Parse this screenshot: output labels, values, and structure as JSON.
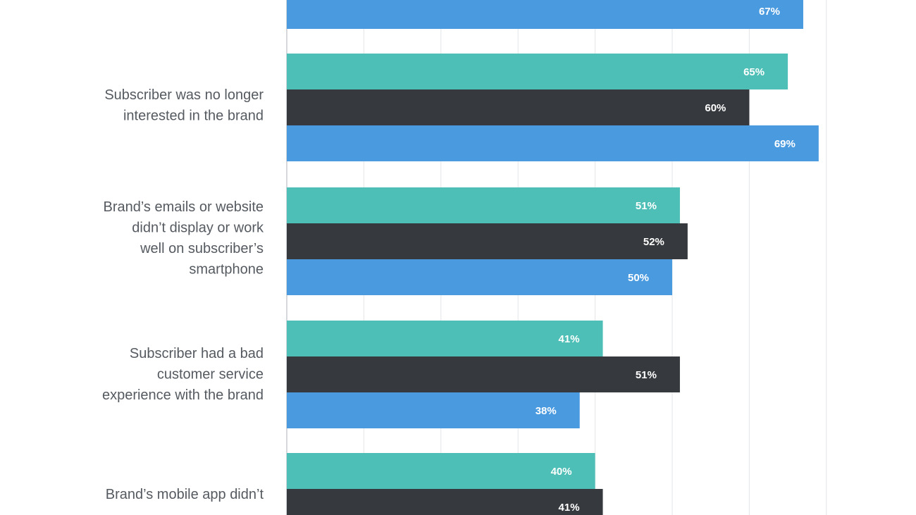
{
  "chart_data": {
    "type": "bar",
    "orientation": "horizontal",
    "grid": true,
    "xlim": [
      0,
      70
    ],
    "value_suffix": "%",
    "colors": [
      "#4dbfb6",
      "#363a3e",
      "#4a9ae0"
    ],
    "series": [
      {
        "name": "series_1",
        "values": [
          null,
          65,
          51,
          41,
          40
        ]
      },
      {
        "name": "series_2",
        "values": [
          null,
          60,
          52,
          51,
          41
        ]
      },
      {
        "name": "series_3",
        "values": [
          67,
          69,
          50,
          38,
          null
        ]
      }
    ],
    "categories": [
      {
        "id": "top-partial",
        "lines": []
      },
      {
        "id": "no-longer-interested",
        "lines": [
          "Subscriber was no longer",
          "interested in the brand"
        ]
      },
      {
        "id": "mobile-display",
        "lines": [
          "Brand’s emails or website",
          "didn’t display or work",
          "well on subscriber’s",
          "smartphone"
        ]
      },
      {
        "id": "bad-service",
        "lines": [
          "Subscriber had a bad",
          "customer service",
          "experience with the brand"
        ]
      },
      {
        "id": "mobile-app",
        "lines": [
          "Brand’s mobile app didn’t"
        ]
      }
    ]
  }
}
